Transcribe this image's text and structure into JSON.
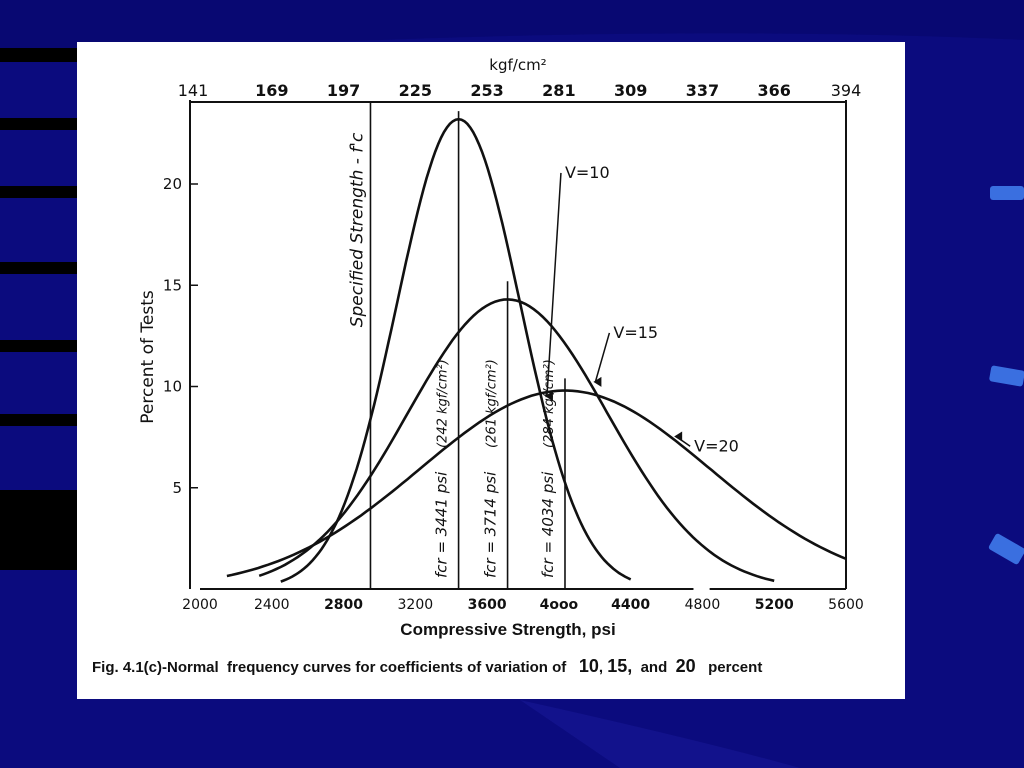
{
  "slide": {
    "background_color": "#0b0b7e",
    "accent_color": "#3a6fe0",
    "panel_color": "#ffffff"
  },
  "caption": {
    "prefix": "Fig. 4.1(c)-Normal",
    "text": "frequency curves for coefficients of variation of",
    "v1": "10",
    "sep1": ",",
    "v2": "15,",
    "and": "and",
    "v3": "20",
    "suffix": "percent"
  },
  "chart_data": {
    "type": "line",
    "title": "",
    "xlabel": "Compressive Strength, psi",
    "ylabel": "Percent of Tests",
    "top_axis_label": "kgf/cm²",
    "xlim": [
      2000,
      5600
    ],
    "ylim": [
      0,
      24
    ],
    "x_ticks": [
      {
        "value": 2000,
        "label": "2000"
      },
      {
        "value": 2400,
        "label": "2400"
      },
      {
        "value": 2800,
        "label": "2800"
      },
      {
        "value": 3200,
        "label": "3200"
      },
      {
        "value": 3600,
        "label": "3600"
      },
      {
        "value": 4000,
        "label": "4ooo"
      },
      {
        "value": 4400,
        "label": "4400"
      },
      {
        "value": 4800,
        "label": "4800"
      },
      {
        "value": 5200,
        "label": "5200"
      },
      {
        "value": 5600,
        "label": "5600"
      }
    ],
    "y_ticks": [
      {
        "value": 5,
        "label": "5"
      },
      {
        "value": 10,
        "label": "10"
      },
      {
        "value": 15,
        "label": "15"
      },
      {
        "value": 20,
        "label": "20"
      }
    ],
    "top_ticks": [
      {
        "value": 2000,
        "label": "141"
      },
      {
        "value": 2400,
        "label": "169"
      },
      {
        "value": 2800,
        "label": "197"
      },
      {
        "value": 3200,
        "label": "225"
      },
      {
        "value": 3600,
        "label": "253"
      },
      {
        "value": 4000,
        "label": "281"
      },
      {
        "value": 4400,
        "label": "309"
      },
      {
        "value": 4800,
        "label": "337"
      },
      {
        "value": 5200,
        "label": "366"
      },
      {
        "value": 5600,
        "label": "394"
      }
    ],
    "series": [
      {
        "name": "V=10",
        "mean": 3441,
        "std": 344,
        "peak": 23.2,
        "x_range": [
          2450,
          4400
        ],
        "label_at": [
          3900,
          20.3
        ]
      },
      {
        "name": "V=15",
        "mean": 3714,
        "std": 557,
        "peak": 14.3,
        "x_range": [
          2330,
          5200
        ],
        "label_at": [
          4170,
          12.4
        ]
      },
      {
        "name": "V=20",
        "mean": 4034,
        "std": 807,
        "peak": 9.8,
        "x_range": [
          2150,
          5600
        ],
        "label_at": [
          4620,
          6.8
        ]
      }
    ],
    "vertical_lines": [
      {
        "x": 2950,
        "label": "Specified Strength - f'c",
        "y_top": 24
      },
      {
        "x": 3441,
        "label": "fcr = 3441 psi",
        "label2": "(242 kgf/cm²)",
        "y_top": 23.6
      },
      {
        "x": 3714,
        "label": "fcr = 3714 psi",
        "label2": "(261 kgf/cm²)",
        "y_top": 15.2
      },
      {
        "x": 4034,
        "label": "fcr = 4034 psi",
        "label2": "(284 kgf/cm²)",
        "y_top": 10.4
      }
    ],
    "grid": false,
    "legend": "inline labels"
  }
}
